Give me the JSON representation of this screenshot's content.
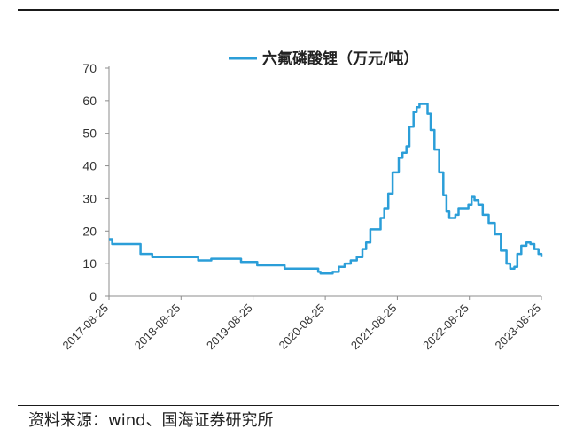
{
  "source": "资料来源：wind、国海证券研究所",
  "colors": {
    "series": "#2b9ed8",
    "axis": "#8c8c8c",
    "text": "#333333"
  },
  "chart_data": {
    "type": "line",
    "title": "",
    "xlabel": "",
    "ylabel": "",
    "ylim": [
      0,
      70
    ],
    "yticks": [
      0,
      10,
      20,
      30,
      40,
      50,
      60,
      70
    ],
    "xlim": [
      "2017-08-25",
      "2023-08-25"
    ],
    "xticks": [
      "2017-08-25",
      "2018-08-25",
      "2019-08-25",
      "2020-08-25",
      "2021-08-25",
      "2022-08-25",
      "2023-08-25"
    ],
    "grid": false,
    "legend_position": "top",
    "series": [
      {
        "name": "六氟磷酸锂（万元/吨）",
        "step": true,
        "points": [
          [
            "2017-08-25",
            17.5
          ],
          [
            "2017-09-10",
            16.0
          ],
          [
            "2018-01-20",
            16.0
          ],
          [
            "2018-02-01",
            13.0
          ],
          [
            "2018-04-01",
            12.0
          ],
          [
            "2018-11-05",
            12.0
          ],
          [
            "2018-11-20",
            11.0
          ],
          [
            "2019-01-10",
            11.0
          ],
          [
            "2019-01-25",
            11.5
          ],
          [
            "2019-06-15",
            11.5
          ],
          [
            "2019-06-25",
            10.5
          ],
          [
            "2019-09-01",
            10.5
          ],
          [
            "2019-09-15",
            9.5
          ],
          [
            "2020-01-15",
            9.5
          ],
          [
            "2020-02-01",
            8.5
          ],
          [
            "2020-07-01",
            8.5
          ],
          [
            "2020-07-20",
            7.5
          ],
          [
            "2020-08-01",
            7.0
          ],
          [
            "2020-09-01",
            7.0
          ],
          [
            "2020-10-01",
            7.5
          ],
          [
            "2020-11-01",
            9.0
          ],
          [
            "2020-12-01",
            10.0
          ],
          [
            "2021-01-01",
            11.0
          ],
          [
            "2021-02-01",
            12.0
          ],
          [
            "2021-03-01",
            14.5
          ],
          [
            "2021-03-20",
            16.5
          ],
          [
            "2021-04-10",
            20.5
          ],
          [
            "2021-05-15",
            20.5
          ],
          [
            "2021-06-01",
            24.0
          ],
          [
            "2021-06-20",
            27.0
          ],
          [
            "2021-07-10",
            31.5
          ],
          [
            "2021-08-01",
            38.0
          ],
          [
            "2021-09-01",
            42.5
          ],
          [
            "2021-09-20",
            44.0
          ],
          [
            "2021-10-10",
            46.0
          ],
          [
            "2021-10-25",
            52.0
          ],
          [
            "2021-11-15",
            56.5
          ],
          [
            "2021-12-01",
            58.0
          ],
          [
            "2021-12-15",
            59.0
          ],
          [
            "2022-01-10",
            59.0
          ],
          [
            "2022-01-25",
            56.0
          ],
          [
            "2022-02-10",
            51.0
          ],
          [
            "2022-03-01",
            45.0
          ],
          [
            "2022-03-25",
            38.0
          ],
          [
            "2022-04-15",
            31.0
          ],
          [
            "2022-05-01",
            26.0
          ],
          [
            "2022-05-15",
            24.0
          ],
          [
            "2022-06-15",
            25.0
          ],
          [
            "2022-07-01",
            27.0
          ],
          [
            "2022-08-01",
            27.0
          ],
          [
            "2022-08-20",
            28.0
          ],
          [
            "2022-09-05",
            30.5
          ],
          [
            "2022-09-20",
            29.5
          ],
          [
            "2022-10-10",
            28.0
          ],
          [
            "2022-11-01",
            25.0
          ],
          [
            "2022-12-01",
            22.5
          ],
          [
            "2023-01-01",
            19.0
          ],
          [
            "2023-02-01",
            14.0
          ],
          [
            "2023-03-01",
            10.0
          ],
          [
            "2023-03-20",
            8.5
          ],
          [
            "2023-04-10",
            9.0
          ],
          [
            "2023-04-25",
            13.0
          ],
          [
            "2023-05-15",
            15.5
          ],
          [
            "2023-06-10",
            16.5
          ],
          [
            "2023-07-01",
            16.0
          ],
          [
            "2023-07-20",
            14.5
          ],
          [
            "2023-08-10",
            13.0
          ],
          [
            "2023-08-25",
            12.0
          ]
        ]
      }
    ]
  }
}
